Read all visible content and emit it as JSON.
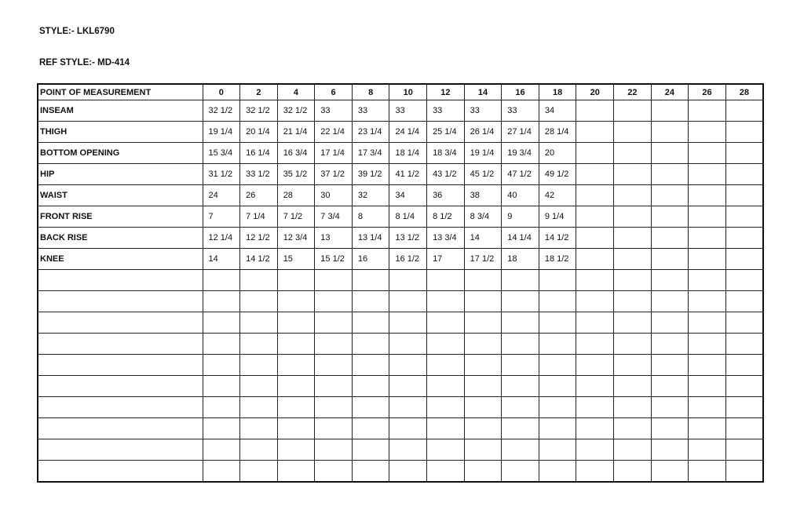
{
  "style_line": "STYLE:- LKL6790",
  "ref_style_line": "REF STYLE:- MD-414",
  "table": {
    "header_label": "POINT OF MEASUREMENT",
    "sizes": [
      "0",
      "2",
      "4",
      "6",
      "8",
      "10",
      "12",
      "14",
      "16",
      "18",
      "20",
      "22",
      "24",
      "26",
      "28"
    ],
    "rows": [
      {
        "label": "INSEAM",
        "values": [
          "32 1/2",
          "32 1/2",
          "32 1/2",
          "33",
          "33",
          "33",
          "33",
          "33",
          "33",
          "34",
          "",
          "",
          "",
          "",
          ""
        ]
      },
      {
        "label": "THIGH",
        "values": [
          "19 1/4",
          "20 1/4",
          "21 1/4",
          "22 1/4",
          "23 1/4",
          "24 1/4",
          "25 1/4",
          "26 1/4",
          "27 1/4",
          "28 1/4",
          "",
          "",
          "",
          "",
          ""
        ]
      },
      {
        "label": "BOTTOM OPENING",
        "values": [
          "15 3/4",
          "16 1/4",
          "16 3/4",
          "17 1/4",
          "17 3/4",
          "18 1/4",
          "18 3/4",
          "19 1/4",
          "19 3/4",
          "20",
          "",
          "",
          "",
          "",
          ""
        ]
      },
      {
        "label": "HIP",
        "values": [
          "31 1/2",
          "33 1/2",
          "35 1/2",
          "37 1/2",
          "39 1/2",
          "41 1/2",
          "43 1/2",
          "45 1/2",
          "47 1/2",
          "49 1/2",
          "",
          "",
          "",
          "",
          ""
        ]
      },
      {
        "label": "WAIST",
        "values": [
          "24",
          "26",
          "28",
          "30",
          "32",
          "34",
          "36",
          "38",
          "40",
          "42",
          "",
          "",
          "",
          "",
          ""
        ]
      },
      {
        "label": "FRONT RISE",
        "values": [
          "7",
          "7 1/4",
          "7 1/2",
          "7 3/4",
          "8",
          "8 1/4",
          "8 1/2",
          "8 3/4",
          "9",
          "9 1/4",
          "",
          "",
          "",
          "",
          ""
        ]
      },
      {
        "label": "BACK RISE",
        "values": [
          "12 1/4",
          "12 1/2",
          "12 3/4",
          "13",
          "13 1/4",
          "13 1/2",
          "13 3/4",
          "14",
          "14 1/4",
          "14 1/2",
          "",
          "",
          "",
          "",
          ""
        ]
      },
      {
        "label": "KNEE",
        "values": [
          "14",
          "14 1/2",
          "15",
          "15 1/2",
          "16",
          "16 1/2",
          "17",
          "17 1/2",
          "18",
          "18 1/2",
          "",
          "",
          "",
          "",
          ""
        ]
      }
    ],
    "empty_rows": 10
  }
}
